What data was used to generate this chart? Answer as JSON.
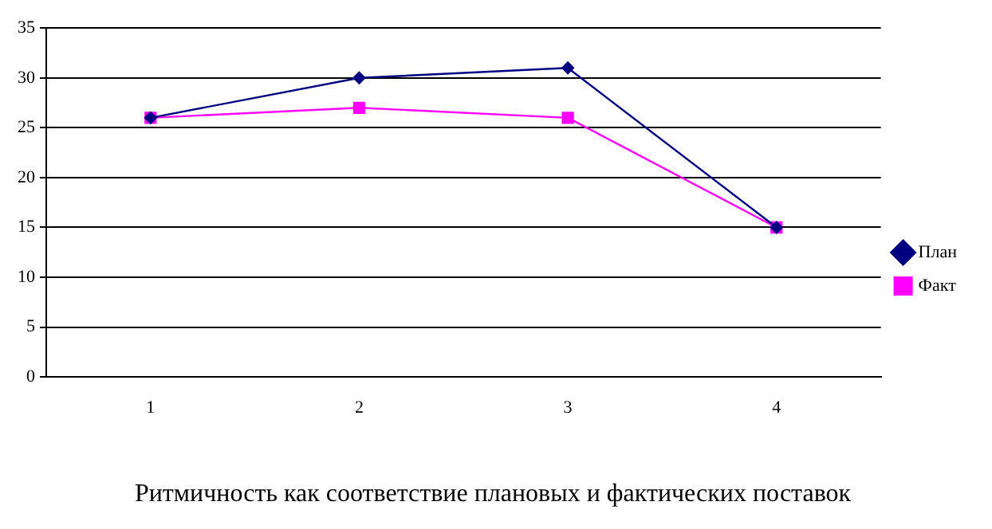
{
  "chart_data": {
    "type": "line",
    "title": "Ритмичность как соответствие плановых и фактических поставок",
    "categories": [
      "1",
      "2",
      "3",
      "4"
    ],
    "series": [
      {
        "name": "План",
        "color": "#000080",
        "values": [
          26,
          30,
          31,
          15
        ],
        "marker": "diamond"
      },
      {
        "name": "Факт",
        "color": "#ff00ff",
        "values": [
          26,
          27,
          26,
          15
        ],
        "marker": "square"
      }
    ],
    "ylim": [
      0,
      35
    ],
    "yticks": [
      0,
      5,
      10,
      15,
      20,
      25,
      30,
      35
    ],
    "grid": "y",
    "legend": "right",
    "line_style": "solid"
  }
}
